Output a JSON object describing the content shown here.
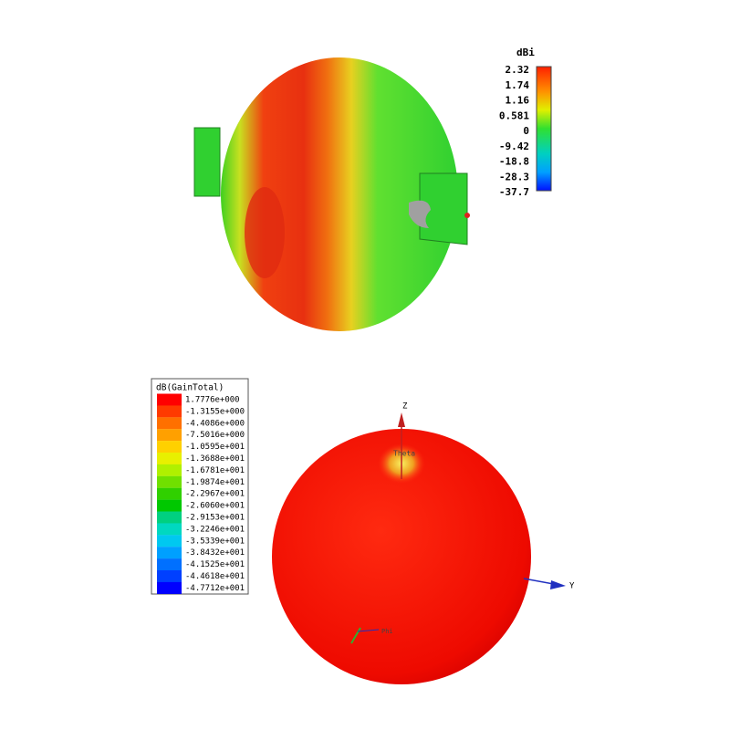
{
  "top_pattern": {
    "colorbar": {
      "title": "dBi",
      "labels": [
        "2.32",
        "1.74",
        "1.16",
        "0.581",
        "0",
        "-9.42",
        "-18.8",
        "-28.3",
        "-37.7"
      ]
    }
  },
  "bottom_pattern": {
    "legend": {
      "title": "dB(GainTotal)",
      "labels": [
        "1.7776e+000",
        "-1.3155e+000",
        "-4.4086e+000",
        "-7.5016e+000",
        "-1.0595e+001",
        "-1.3688e+001",
        "-1.6781e+001",
        "-1.9874e+001",
        "-2.2967e+001",
        "-2.6060e+001",
        "-2.9153e+001",
        "-3.2246e+001",
        "-3.5339e+001",
        "-3.8432e+001",
        "-4.1525e+001",
        "-4.4618e+001",
        "-4.7712e+001"
      ]
    },
    "axes": {
      "z": "Z",
      "y": "Y",
      "theta": "Theta",
      "phi": "Phi"
    }
  }
}
